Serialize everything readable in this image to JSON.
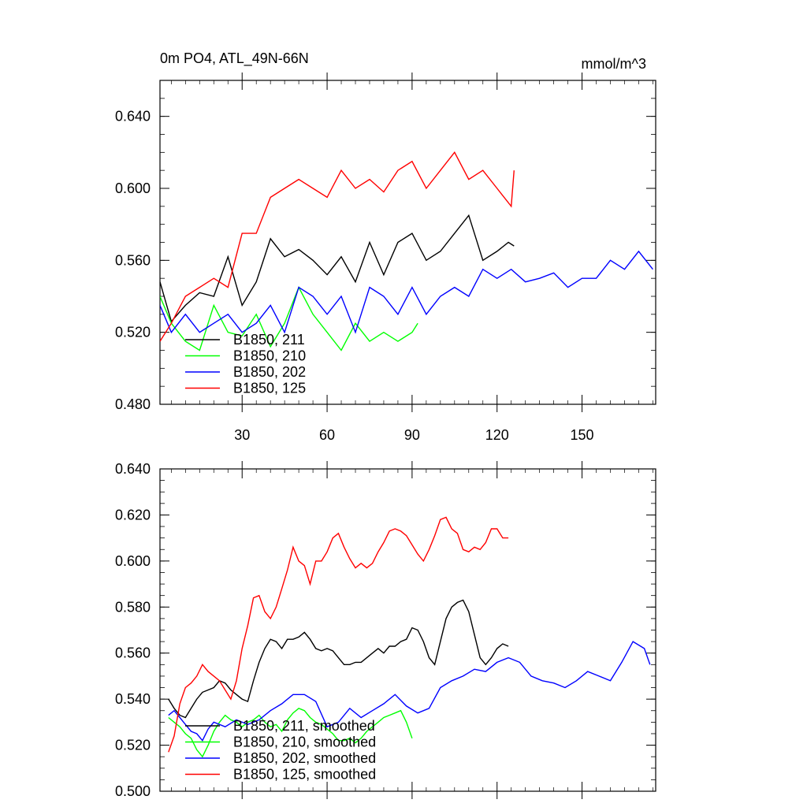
{
  "chart_data": [
    {
      "type": "line",
      "title": "0m PO4, ATL_49N-66N",
      "units": "mmol/m^3",
      "xlabel": "",
      "ylabel": "",
      "xlim": [
        1,
        176
      ],
      "ylim": [
        0.48,
        0.66
      ],
      "xticks": [
        30,
        60,
        90,
        120,
        150
      ],
      "xtick_labels": [
        "30",
        "60",
        "90",
        "120",
        "150"
      ],
      "yticks": [
        0.48,
        0.52,
        0.56,
        0.6,
        0.64
      ],
      "ytick_labels": [
        "0.480",
        "0.520",
        "0.560",
        "0.600",
        "0.640"
      ],
      "grid": false,
      "legend_position": "bottom-left",
      "series": [
        {
          "name": "B1850, 211",
          "color": "#000000",
          "x": [
            1,
            5,
            10,
            15,
            20,
            25,
            30,
            35,
            40,
            45,
            50,
            55,
            60,
            65,
            70,
            75,
            80,
            85,
            90,
            95,
            100,
            105,
            110,
            115,
            120,
            124,
            126
          ],
          "y": [
            0.548,
            0.526,
            0.535,
            0.542,
            0.54,
            0.562,
            0.535,
            0.548,
            0.572,
            0.562,
            0.566,
            0.56,
            0.552,
            0.562,
            0.548,
            0.57,
            0.552,
            0.57,
            0.575,
            0.56,
            0.565,
            0.575,
            0.585,
            0.56,
            0.565,
            0.57,
            0.568
          ]
        },
        {
          "name": "B1850, 210",
          "color": "#00ff00",
          "x": [
            1,
            5,
            10,
            15,
            20,
            25,
            30,
            35,
            40,
            45,
            50,
            55,
            60,
            65,
            70,
            75,
            80,
            85,
            90,
            92
          ],
          "y": [
            0.54,
            0.525,
            0.515,
            0.51,
            0.535,
            0.52,
            0.518,
            0.53,
            0.512,
            0.525,
            0.545,
            0.53,
            0.52,
            0.51,
            0.525,
            0.515,
            0.52,
            0.515,
            0.52,
            0.525
          ]
        },
        {
          "name": "B1850, 202",
          "color": "#0000ff",
          "x": [
            1,
            5,
            10,
            15,
            20,
            25,
            30,
            35,
            40,
            45,
            50,
            55,
            60,
            65,
            70,
            75,
            80,
            85,
            90,
            95,
            100,
            105,
            110,
            115,
            120,
            125,
            130,
            135,
            140,
            145,
            150,
            155,
            160,
            165,
            170,
            175
          ],
          "y": [
            0.535,
            0.52,
            0.53,
            0.52,
            0.525,
            0.53,
            0.52,
            0.525,
            0.535,
            0.52,
            0.545,
            0.54,
            0.53,
            0.54,
            0.52,
            0.545,
            0.54,
            0.53,
            0.545,
            0.53,
            0.54,
            0.545,
            0.54,
            0.555,
            0.55,
            0.555,
            0.548,
            0.55,
            0.553,
            0.545,
            0.55,
            0.55,
            0.56,
            0.555,
            0.565,
            0.555
          ]
        },
        {
          "name": "B1850, 125",
          "color": "#ff0000",
          "x": [
            1,
            5,
            10,
            15,
            20,
            25,
            30,
            35,
            40,
            45,
            50,
            55,
            60,
            65,
            70,
            75,
            80,
            85,
            90,
            95,
            100,
            105,
            110,
            115,
            120,
            125,
            126
          ],
          "y": [
            0.515,
            0.525,
            0.54,
            0.545,
            0.55,
            0.545,
            0.575,
            0.575,
            0.595,
            0.6,
            0.605,
            0.6,
            0.595,
            0.61,
            0.6,
            0.605,
            0.598,
            0.61,
            0.615,
            0.6,
            0.61,
            0.62,
            0.605,
            0.61,
            0.6,
            0.59,
            0.61
          ]
        }
      ]
    },
    {
      "type": "line",
      "title": "",
      "xlabel": "",
      "ylabel": "",
      "xlim": [
        1,
        176
      ],
      "ylim": [
        0.5,
        0.64
      ],
      "xticks": [
        30,
        60,
        90,
        120,
        150
      ],
      "yticks": [
        0.5,
        0.52,
        0.54,
        0.56,
        0.58,
        0.6,
        0.62,
        0.64
      ],
      "ytick_labels": [
        "0.500",
        "0.520",
        "0.540",
        "0.560",
        "0.580",
        "0.600",
        "0.620",
        "0.640"
      ],
      "grid": false,
      "legend_position": "bottom-left",
      "series": [
        {
          "name": "B1850, 211, smoothed",
          "color": "#000000",
          "x": [
            4,
            6,
            8,
            10,
            12,
            14,
            16,
            18,
            20,
            22,
            24,
            26,
            28,
            30,
            32,
            34,
            36,
            38,
            40,
            42,
            44,
            46,
            48,
            50,
            52,
            54,
            56,
            58,
            60,
            62,
            64,
            66,
            68,
            70,
            72,
            74,
            76,
            78,
            80,
            82,
            84,
            86,
            88,
            90,
            92,
            94,
            96,
            98,
            100,
            102,
            104,
            106,
            108,
            110,
            112,
            114,
            116,
            118,
            120,
            122,
            124
          ],
          "y": [
            0.54,
            0.536,
            0.533,
            0.532,
            0.536,
            0.54,
            0.543,
            0.544,
            0.545,
            0.548,
            0.547,
            0.544,
            0.542,
            0.54,
            0.539,
            0.548,
            0.556,
            0.562,
            0.566,
            0.565,
            0.562,
            0.566,
            0.566,
            0.567,
            0.569,
            0.566,
            0.562,
            0.561,
            0.562,
            0.561,
            0.558,
            0.555,
            0.555,
            0.556,
            0.556,
            0.558,
            0.56,
            0.562,
            0.56,
            0.563,
            0.563,
            0.565,
            0.566,
            0.571,
            0.57,
            0.565,
            0.558,
            0.555,
            0.565,
            0.575,
            0.58,
            0.582,
            0.583,
            0.578,
            0.568,
            0.558,
            0.555,
            0.558,
            0.562,
            0.564,
            0.563
          ]
        },
        {
          "name": "B1850, 210, smoothed",
          "color": "#00ff00",
          "x": [
            4,
            6,
            8,
            10,
            12,
            14,
            16,
            18,
            20,
            22,
            24,
            26,
            28,
            30,
            32,
            34,
            36,
            38,
            40,
            42,
            44,
            46,
            48,
            50,
            52,
            54,
            56,
            58,
            60,
            62,
            64,
            66,
            68,
            70,
            72,
            74,
            76,
            78,
            80,
            82,
            84,
            86,
            88,
            90
          ],
          "y": [
            0.532,
            0.53,
            0.528,
            0.525,
            0.523,
            0.518,
            0.515,
            0.52,
            0.526,
            0.53,
            0.533,
            0.531,
            0.53,
            0.528,
            0.53,
            0.531,
            0.533,
            0.53,
            0.528,
            0.529,
            0.526,
            0.531,
            0.534,
            0.536,
            0.535,
            0.532,
            0.53,
            0.529,
            0.527,
            0.525,
            0.522,
            0.522,
            0.523,
            0.521,
            0.523,
            0.526,
            0.528,
            0.53,
            0.532,
            0.533,
            0.534,
            0.535,
            0.53,
            0.523
          ]
        },
        {
          "name": "B1850, 202, smoothed",
          "color": "#0000ff",
          "x": [
            4,
            6,
            8,
            10,
            12,
            14,
            16,
            18,
            20,
            24,
            28,
            32,
            36,
            40,
            44,
            48,
            52,
            56,
            60,
            64,
            68,
            72,
            76,
            80,
            84,
            88,
            92,
            96,
            100,
            104,
            108,
            112,
            116,
            120,
            124,
            128,
            132,
            136,
            140,
            144,
            148,
            152,
            156,
            160,
            164,
            168,
            172,
            174
          ],
          "y": [
            0.533,
            0.535,
            0.532,
            0.529,
            0.526,
            0.525,
            0.522,
            0.527,
            0.53,
            0.528,
            0.531,
            0.529,
            0.531,
            0.535,
            0.538,
            0.542,
            0.542,
            0.539,
            0.528,
            0.53,
            0.536,
            0.532,
            0.535,
            0.538,
            0.542,
            0.537,
            0.534,
            0.536,
            0.545,
            0.548,
            0.55,
            0.553,
            0.552,
            0.556,
            0.558,
            0.556,
            0.55,
            0.548,
            0.547,
            0.545,
            0.548,
            0.552,
            0.55,
            0.548,
            0.556,
            0.565,
            0.562,
            0.555
          ]
        },
        {
          "name": "B1850, 125, smoothed",
          "color": "#ff0000",
          "x": [
            4,
            6,
            8,
            10,
            12,
            14,
            16,
            18,
            20,
            22,
            24,
            26,
            28,
            30,
            32,
            34,
            36,
            38,
            40,
            42,
            44,
            46,
            48,
            50,
            52,
            54,
            56,
            58,
            60,
            62,
            64,
            66,
            68,
            70,
            72,
            74,
            76,
            78,
            80,
            82,
            84,
            86,
            88,
            90,
            92,
            94,
            96,
            98,
            100,
            102,
            104,
            106,
            108,
            110,
            112,
            114,
            116,
            118,
            120,
            122,
            124
          ],
          "y": [
            0.517,
            0.524,
            0.538,
            0.545,
            0.547,
            0.55,
            0.555,
            0.552,
            0.55,
            0.548,
            0.544,
            0.54,
            0.548,
            0.562,
            0.572,
            0.584,
            0.585,
            0.578,
            0.575,
            0.58,
            0.588,
            0.596,
            0.606,
            0.6,
            0.598,
            0.59,
            0.6,
            0.6,
            0.604,
            0.61,
            0.612,
            0.606,
            0.601,
            0.597,
            0.599,
            0.597,
            0.599,
            0.604,
            0.608,
            0.613,
            0.614,
            0.613,
            0.611,
            0.607,
            0.603,
            0.6,
            0.605,
            0.611,
            0.618,
            0.619,
            0.614,
            0.612,
            0.605,
            0.604,
            0.606,
            0.605,
            0.608,
            0.614,
            0.614,
            0.61,
            0.61
          ]
        }
      ]
    }
  ]
}
